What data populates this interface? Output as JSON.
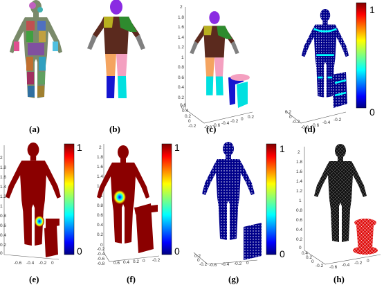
{
  "panels": {
    "a": {
      "caption": "(a)"
    },
    "b": {
      "caption": "(b)"
    },
    "c": {
      "caption": "(c)",
      "yticks": [
        "2",
        "1.8",
        "1.6",
        "1.4",
        "1.2",
        "1",
        "0.8",
        "0.6",
        "0.4",
        "0.2",
        "0"
      ],
      "xticks": [
        "-0.8",
        "-0.6",
        "-0.4",
        "-0.2",
        "0",
        "0.2"
      ],
      "zticks": [
        "0.6",
        "0.4",
        "0.2",
        "0",
        "-0.2"
      ]
    },
    "d": {
      "caption": "(d)",
      "xticks": [
        "-0.8",
        "-0.6",
        "-0.4",
        "-0.2"
      ],
      "zticks": [
        "0.2",
        "0",
        "-0.2"
      ],
      "cb_top": "1",
      "cb_bottom": "0"
    },
    "e": {
      "caption": "(e)",
      "yticks": [
        "2",
        "1.8",
        "1.6",
        "1.4",
        "1.2",
        "1",
        "0.8",
        "0.6",
        "0.4",
        "0.2",
        "0"
      ],
      "xticks": [
        "-0.6",
        "-0.4",
        "-0.2",
        "0"
      ],
      "cb_top": "1",
      "cb_bottom": "0"
    },
    "f": {
      "caption": "(f)",
      "yticks": [
        "2",
        "1.8",
        "1.6",
        "1.4",
        "1.2",
        "1",
        "0.8",
        "0.6",
        "0.4",
        "0.2",
        "0"
      ],
      "xticks": [
        "0.6",
        "0.4",
        "0.2",
        "0",
        "-0.2"
      ],
      "zticks": [
        "-0.2",
        "-0.4",
        "-0.6",
        "-0.8"
      ],
      "cb_top": "1",
      "cb_bottom": "0"
    },
    "g": {
      "caption": "(g)",
      "xticks": [
        "-0.6",
        "-0.4",
        "-0.2",
        "0"
      ],
      "zticks": [
        "0.2",
        "0",
        "-0.2"
      ],
      "cb_top": "1",
      "cb_bottom": "0"
    },
    "h": {
      "caption": "(h)",
      "yticks": [
        "2",
        "1.8",
        "1.6",
        "1.4",
        "1.2",
        "1",
        "0.8",
        "0.6",
        "0.4",
        "0.2",
        "0"
      ],
      "xticks": [
        "-0.6",
        "-0.4",
        "-0.2",
        "0"
      ],
      "zticks": [
        "0.4",
        "0.2",
        "0",
        "-0.2"
      ]
    }
  },
  "colors": {
    "dark_red": "#8b0000",
    "dark_blue": "#00008b",
    "mesh_black": "#111111",
    "mesh_red": "#e01010"
  }
}
